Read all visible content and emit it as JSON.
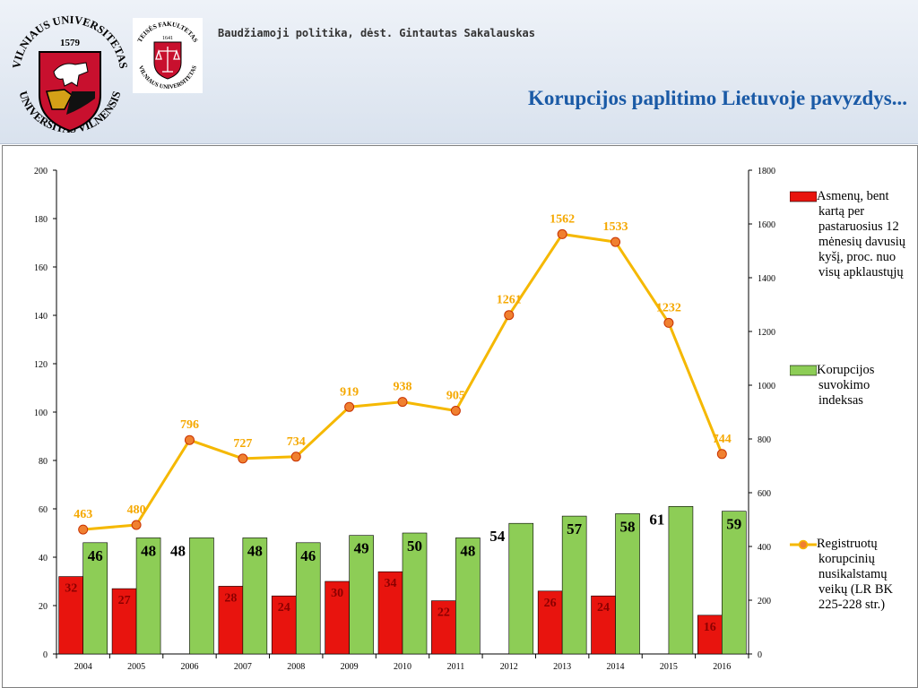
{
  "header": {
    "course": "Baudžiamoji politika, dėst. Gintautas Sakalauskas",
    "title": "Korupcijos paplitimo Lietuvoje pavyzdys...",
    "vu_logo": {
      "text_top": "VILNIAUS UNIVERSITETAS",
      "text_bottom": "UNIVERSITAS VILNENSIS",
      "year": "1579",
      "colors": {
        "shield": "#c8102e",
        "gold": "#d4a017"
      }
    },
    "faculty_logo": {
      "text_top": "TEISĖS FAKULTETAS",
      "text_bottom": "VILNIAUS UNIVERSITETAS",
      "year": "1641",
      "colors": {
        "shield": "#c8102e",
        "bg": "#ffffff"
      }
    }
  },
  "chart_data": {
    "type": "bar",
    "categories": [
      "2004",
      "2005",
      "2006",
      "2007",
      "2008",
      "2009",
      "2010",
      "2011",
      "2012",
      "2013",
      "2014",
      "2015",
      "2016"
    ],
    "series": [
      {
        "name": "Asmenų, bent kartą per pastaruosius 12 mėnesių davusių kyšį, proc. nuo visų apklaustųjų",
        "type": "bar",
        "axis": "left",
        "color": "#e8140e",
        "values": [
          32,
          27,
          null,
          28,
          24,
          30,
          34,
          22,
          null,
          26,
          24,
          null,
          16
        ]
      },
      {
        "name": "Korupcijos suvokimo indeksas",
        "type": "bar",
        "axis": "left",
        "color": "#8dcd56",
        "values": [
          46,
          48,
          48,
          48,
          46,
          49,
          50,
          48,
          54,
          57,
          58,
          61,
          59
        ]
      },
      {
        "name": "Registruotų korupcinių nusikalstamų veikų (LR BK 225-228 str.)",
        "type": "line",
        "axis": "right",
        "color": "#f5b800",
        "marker_color": "#f08030",
        "values": [
          463,
          480,
          796,
          727,
          734,
          919,
          938,
          905,
          1261,
          1562,
          1533,
          1232,
          744
        ]
      }
    ],
    "ylim_left": [
      0,
      200
    ],
    "yticks_left": [
      0,
      20,
      40,
      60,
      80,
      100,
      120,
      140,
      160,
      180,
      200
    ],
    "ylim_right": [
      0,
      1800
    ],
    "yticks_right": [
      0,
      200,
      400,
      600,
      800,
      1000,
      1200,
      1400,
      1600,
      1800
    ],
    "grid": false,
    "legend_position": "right"
  }
}
